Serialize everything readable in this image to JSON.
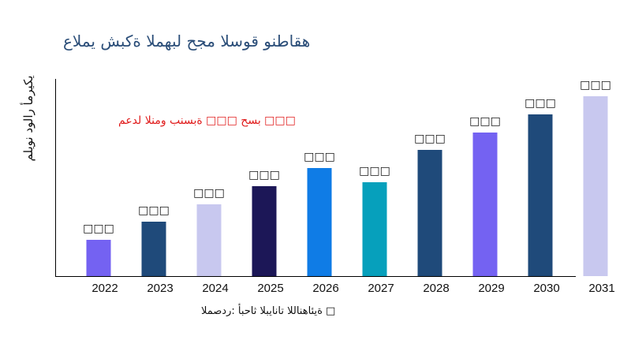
{
  "chart_data": {
    "type": "bar",
    "title": "عالمي شبكة المهبل حجم السوق ونطاقه",
    "ylabel": "مليون دولار أمريكي",
    "xlabel": "",
    "annotation": "معدل النمو بنسبة □□□ حسب □□□",
    "source": "المصدر: أبحاث البيانات اللانهائية □",
    "categories": [
      "2022",
      "2023",
      "2024",
      "2025",
      "2026",
      "2027",
      "2028",
      "2029",
      "2030",
      "2031"
    ],
    "values": [
      46,
      69,
      91,
      114,
      137,
      119,
      160,
      182,
      205,
      228
    ],
    "data_labels": [
      "□□□",
      "□□□",
      "□□□",
      "□□□",
      "□□□",
      "□□□",
      "□□□",
      "□□□",
      "□□□",
      "□□□"
    ],
    "colors": [
      "#7462f2",
      "#1f4a7a",
      "#c8c8ef",
      "#1c1757",
      "#0f7ce6",
      "#06a0bc",
      "#1f4a7a",
      "#7462f2",
      "#1f4a7a",
      "#c8c8ef"
    ],
    "ylim": [
      0,
      250
    ],
    "grid": false,
    "legend": "none"
  }
}
